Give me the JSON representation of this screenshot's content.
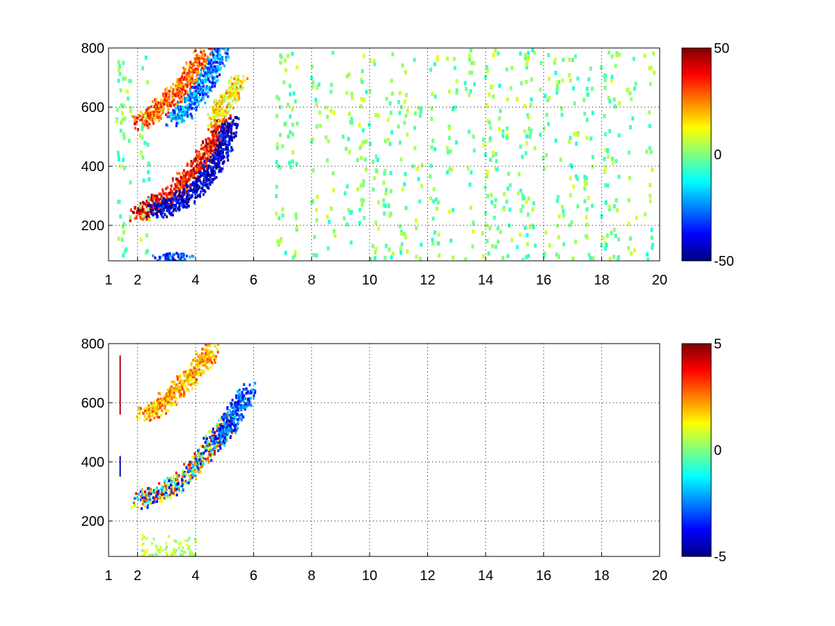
{
  "colormap": "jet",
  "chart_data": [
    {
      "type": "heatmap",
      "title": "",
      "xlabel": "",
      "ylabel": "",
      "xlim": [
        1,
        20
      ],
      "ylim": [
        80,
        800
      ],
      "grid": true,
      "x_ticks": [
        1,
        2,
        4,
        6,
        8,
        10,
        12,
        14,
        16,
        18,
        20
      ],
      "x_tick_labels": [
        "1",
        "2",
        "4",
        "6",
        "8",
        "10",
        "12",
        "14",
        "16",
        "18",
        "20"
      ],
      "y_ticks": [
        200,
        400,
        600,
        800
      ],
      "y_tick_labels": [
        "200",
        "400",
        "600",
        "800"
      ],
      "colorbar": {
        "range": [
          -50,
          50
        ],
        "ticks": [
          50,
          0,
          -50
        ],
        "tick_labels": [
          "50",
          "0",
          "-50"
        ]
      },
      "structures": [
        {
          "feature": "positive ridge",
          "x": [
            1.9,
            2.5,
            3.0,
            3.5,
            4.0,
            4.4,
            4.8,
            5.0
          ],
          "y": [
            240,
            270,
            300,
            340,
            400,
            460,
            520,
            560
          ],
          "value": 38
        },
        {
          "feature": "negative ridge",
          "x": [
            2.5,
            3.0,
            3.6,
            4.1,
            4.5,
            4.9,
            5.1,
            5.2
          ],
          "y": [
            250,
            265,
            295,
            340,
            400,
            450,
            520,
            560
          ],
          "value": -42
        },
        {
          "feature": "positive ridge",
          "x": [
            2.0,
            2.6,
            3.1,
            3.6,
            4.0,
            4.3
          ],
          "y": [
            550,
            590,
            630,
            680,
            740,
            790
          ],
          "value": 28
        },
        {
          "feature": "negative ridge",
          "x": [
            3.2,
            3.7,
            4.1,
            4.4,
            4.7,
            4.9
          ],
          "y": [
            560,
            600,
            650,
            700,
            760,
            800
          ],
          "value": -25
        },
        {
          "feature": "positive ridge",
          "x": [
            4.6,
            4.9,
            5.2,
            5.5
          ],
          "y": [
            560,
            610,
            650,
            700
          ],
          "value": 15
        },
        {
          "feature": "negative patch",
          "x": [
            2.7,
            3.0,
            3.4,
            3.8
          ],
          "y": [
            80,
            85,
            85,
            80
          ],
          "value": -30
        }
      ],
      "noise_columns": [
        1.4,
        1.6,
        2.2,
        6.9,
        7.3,
        8.1,
        8.6,
        9.2,
        9.7,
        10.1,
        10.6,
        11.1,
        11.6,
        12.2,
        12.8,
        13.4,
        14.0,
        14.3,
        14.7,
        15.2,
        15.5,
        16.0,
        16.5,
        17.0,
        17.5,
        18.1,
        18.4,
        19.0,
        19.6
      ],
      "noise_range": [
        -10,
        10
      ]
    },
    {
      "type": "heatmap",
      "title": "",
      "xlabel": "",
      "ylabel": "",
      "xlim": [
        1,
        20
      ],
      "ylim": [
        80,
        800
      ],
      "grid": true,
      "x_ticks": [
        1,
        2,
        4,
        6,
        8,
        10,
        12,
        14,
        16,
        18,
        20
      ],
      "x_tick_labels": [
        "1",
        "2",
        "4",
        "6",
        "8",
        "10",
        "12",
        "14",
        "16",
        "18",
        "20"
      ],
      "y_ticks": [
        200,
        400,
        600,
        800
      ],
      "y_tick_labels": [
        "200",
        "400",
        "600",
        "800"
      ],
      "colorbar": {
        "range": [
          -5,
          5
        ],
        "ticks": [
          5,
          0,
          -5
        ],
        "tick_labels": [
          "5",
          "0",
          "-5"
        ]
      },
      "structures": [
        {
          "feature": "mixed band",
          "x": [
            2.0,
            2.5,
            3.0,
            3.5,
            4.0,
            4.4,
            4.8,
            5.2
          ],
          "y": [
            270,
            290,
            310,
            340,
            390,
            440,
            500,
            550
          ],
          "value": 0
        },
        {
          "feature": "mixed band",
          "x": [
            2.2,
            2.8,
            3.3,
            3.8,
            4.2,
            4.6
          ],
          "y": [
            560,
            600,
            640,
            690,
            740,
            790
          ],
          "value": 2
        },
        {
          "feature": "mixed band",
          "x": [
            4.8,
            5.2,
            5.5,
            5.8
          ],
          "y": [
            480,
            540,
            600,
            650
          ],
          "value": -3
        }
      ],
      "vertical_lines": [
        {
          "x": 1.4,
          "y": [
            560,
            760
          ],
          "value": 4.5
        },
        {
          "x": 1.4,
          "y": [
            350,
            420
          ],
          "value": -4.5
        }
      ],
      "base_patch": {
        "x": [
          2.1,
          4.0
        ],
        "y": [
          80,
          160
        ],
        "value": 0.5
      }
    }
  ]
}
